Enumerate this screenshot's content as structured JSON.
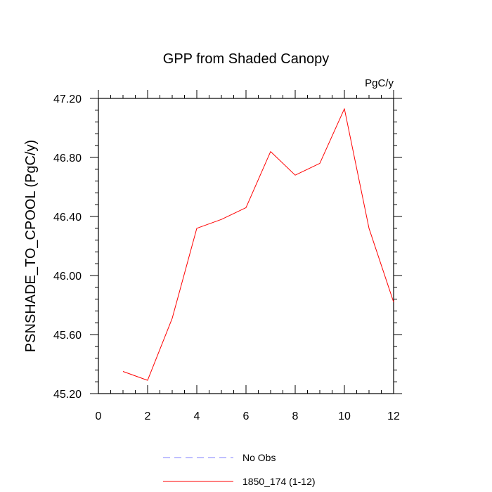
{
  "chart_data": {
    "type": "line",
    "title": "GPP from Shaded Canopy",
    "units_label": "PgC/y",
    "ylabel": "PSNSHADE_TO_CPOOL  (PgC/y)",
    "xlabel": "",
    "xlim": [
      0,
      12
    ],
    "ylim": [
      45.2,
      47.2
    ],
    "x_ticks": [
      "0",
      "2",
      "4",
      "6",
      "8",
      "10",
      "12"
    ],
    "y_ticks": [
      "45.20",
      "45.60",
      "46.00",
      "46.40",
      "46.80",
      "47.20"
    ],
    "grid": false,
    "legend_position": "bottom",
    "series": [
      {
        "name": "1850_174 (1-12)",
        "color": "#ff0000",
        "dash": "solid",
        "x": [
          1,
          2,
          3,
          4,
          5,
          6,
          7,
          8,
          9,
          10,
          11,
          12
        ],
        "values": [
          45.35,
          45.29,
          45.71,
          46.32,
          46.38,
          46.46,
          46.84,
          46.68,
          46.76,
          47.13,
          46.32,
          45.82
        ]
      }
    ],
    "legend": [
      {
        "label": "No Obs",
        "color": "#8080ff",
        "dash": "dashed"
      },
      {
        "label": "1850_174 (1-12)",
        "color": "#ff0000",
        "dash": "solid"
      }
    ]
  }
}
